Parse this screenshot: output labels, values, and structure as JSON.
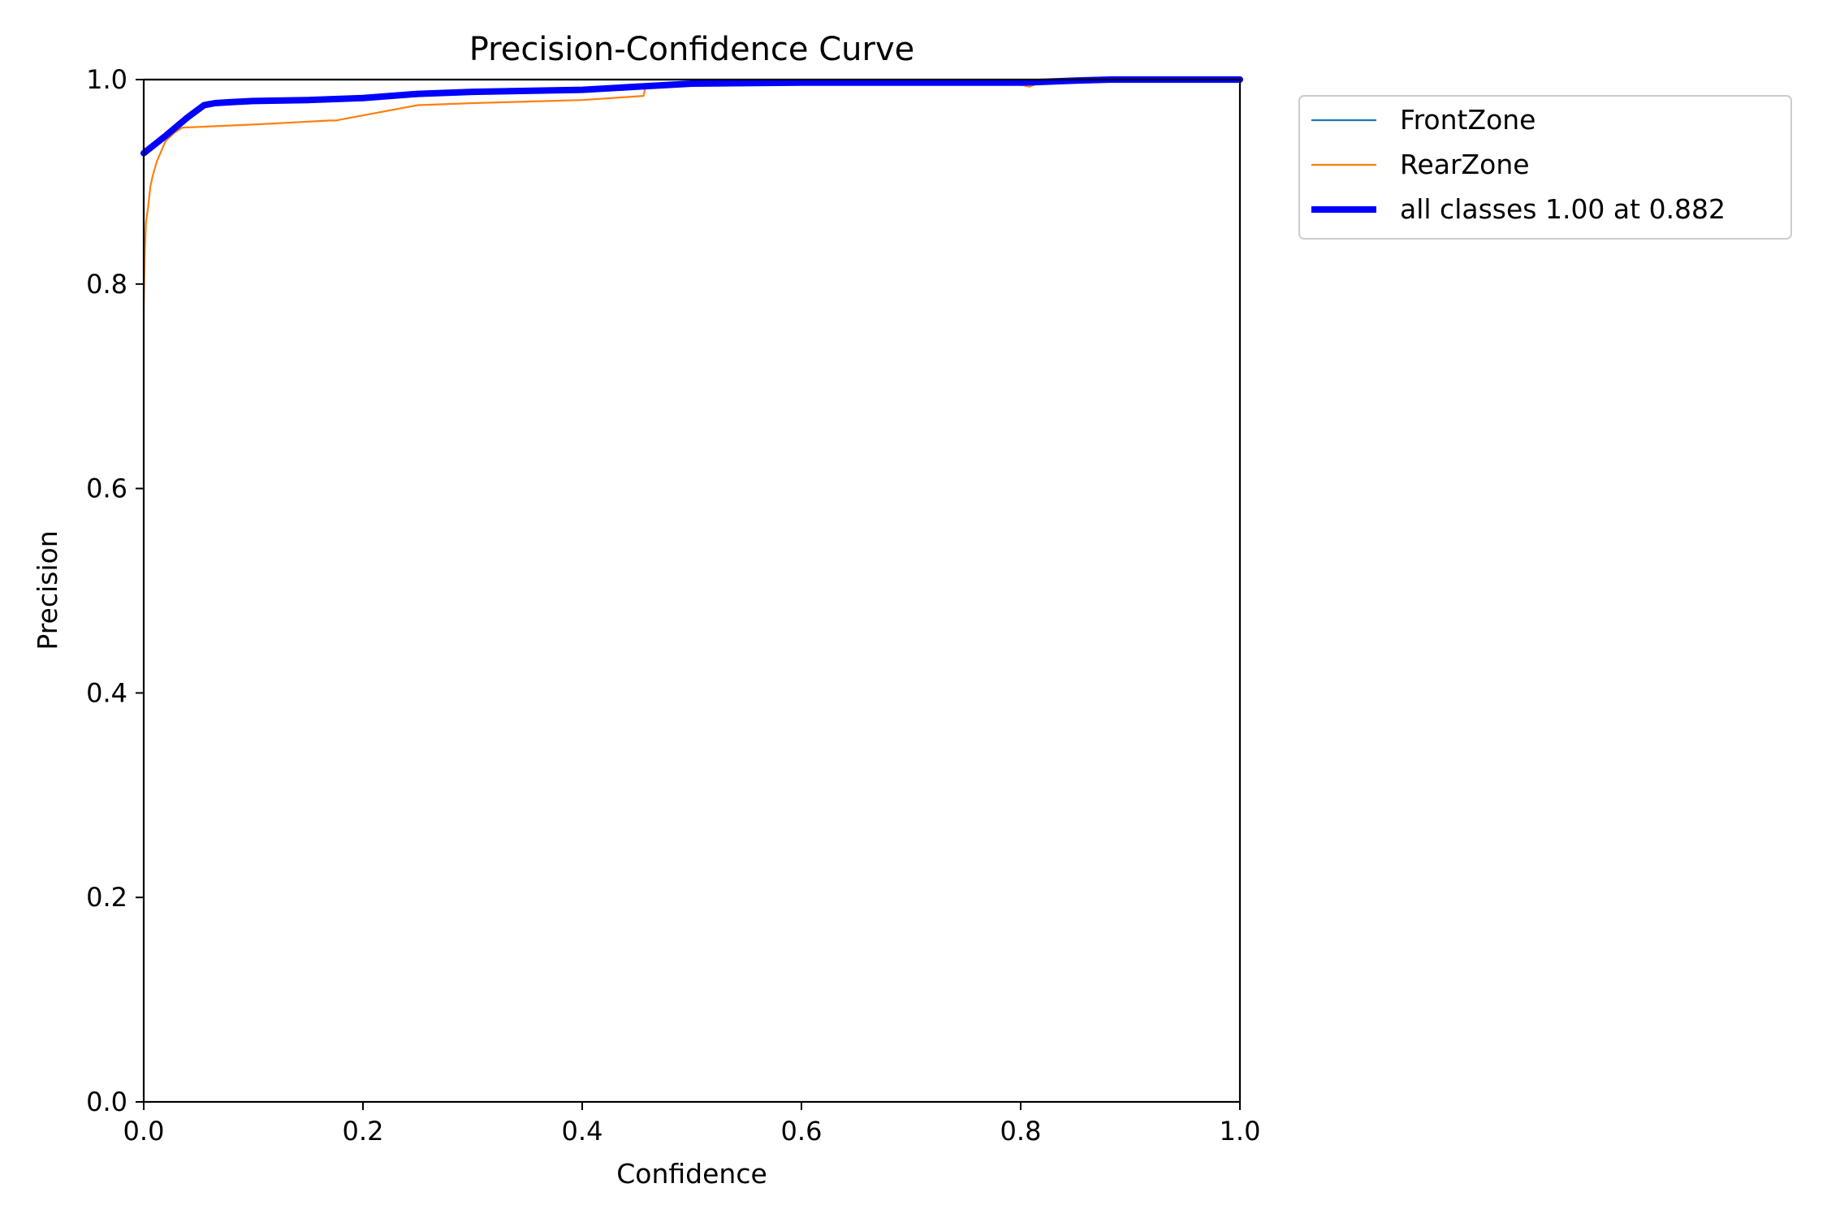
{
  "chart_data": {
    "type": "line",
    "title": "Precision-Confidence Curve",
    "xlabel": "Confidence",
    "ylabel": "Precision",
    "xlim": [
      0,
      1
    ],
    "ylim": [
      0,
      1
    ],
    "xticks": [
      "0.0",
      "0.2",
      "0.4",
      "0.6",
      "0.8",
      "1.0"
    ],
    "yticks": [
      "0.0",
      "0.2",
      "0.4",
      "0.6",
      "0.8",
      "1.0"
    ],
    "grid": false,
    "legend_position": "outside-top-right",
    "series": [
      {
        "name": "FrontZone",
        "color": "#1f77b4",
        "x": [
          0.0,
          0.02,
          0.05,
          0.1,
          0.2,
          0.3,
          0.5,
          0.7,
          0.9,
          1.0
        ],
        "y": [
          1.0,
          1.0,
          1.0,
          1.0,
          1.0,
          1.0,
          1.0,
          1.0,
          1.0,
          1.0
        ]
      },
      {
        "name": "RearZone",
        "color": "#ff7f0e",
        "x": [
          0.0,
          0.001,
          0.002,
          0.004,
          0.006,
          0.008,
          0.012,
          0.016,
          0.02,
          0.028,
          0.035,
          0.1,
          0.17,
          0.175,
          0.25,
          0.3,
          0.4,
          0.456,
          0.458,
          0.5,
          0.6,
          0.7,
          0.8,
          0.808,
          0.82,
          0.88,
          1.0
        ],
        "y": [
          0.78,
          0.83,
          0.86,
          0.875,
          0.895,
          0.905,
          0.92,
          0.93,
          0.94,
          0.948,
          0.953,
          0.956,
          0.96,
          0.96,
          0.975,
          0.977,
          0.98,
          0.984,
          0.995,
          0.995,
          0.995,
          0.995,
          0.995,
          0.993,
          0.998,
          1.0,
          1.0
        ]
      },
      {
        "name": "all classes 1.00 at 0.882",
        "color": "#0000ff",
        "x": [
          0.0,
          0.02,
          0.04,
          0.055,
          0.065,
          0.08,
          0.1,
          0.15,
          0.2,
          0.25,
          0.3,
          0.4,
          0.45,
          0.5,
          0.6,
          0.7,
          0.8,
          0.85,
          0.882,
          0.9,
          1.0
        ],
        "y": [
          0.928,
          0.945,
          0.963,
          0.975,
          0.977,
          0.978,
          0.979,
          0.98,
          0.982,
          0.986,
          0.988,
          0.99,
          0.993,
          0.996,
          0.997,
          0.997,
          0.997,
          0.999,
          1.0,
          1.0,
          1.0
        ]
      }
    ]
  }
}
